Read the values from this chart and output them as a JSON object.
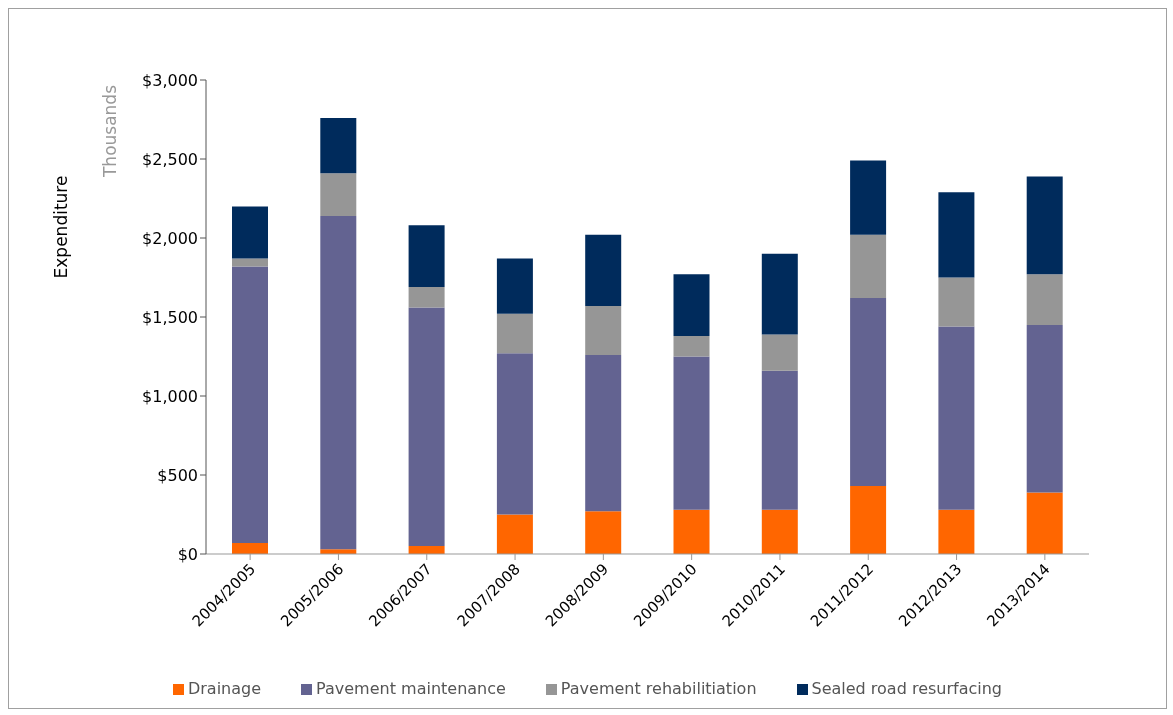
{
  "chart_data": {
    "type": "bar",
    "stacked": true,
    "ylabel": "Expenditure",
    "annotations": [
      "Thousands"
    ],
    "categories": [
      "2004/2005",
      "2005/2006",
      "2006/2007",
      "2007/2008",
      "2008/2009",
      "2009/2010",
      "2010/2011",
      "2011/2012",
      "2012/2013",
      "2013/2014"
    ],
    "series": [
      {
        "name": "Drainage",
        "color": "#ff6600",
        "values": [
          70,
          30,
          50,
          250,
          270,
          280,
          280,
          430,
          280,
          390
        ]
      },
      {
        "name": "Pavement maintenance",
        "color": "#636391",
        "values": [
          1750,
          2110,
          1510,
          1020,
          990,
          970,
          880,
          1190,
          1160,
          1060
        ]
      },
      {
        "name": "Pavement rehabilitiation",
        "color": "#969696",
        "values": [
          50,
          270,
          130,
          250,
          310,
          130,
          230,
          400,
          310,
          320
        ]
      },
      {
        "name": "Sealed road resurfacing",
        "color": "#002b5c",
        "values": [
          330,
          350,
          390,
          350,
          450,
          390,
          510,
          470,
          540,
          620
        ]
      }
    ],
    "ylim": [
      0,
      3000
    ],
    "yticks": [
      {
        "value": 0,
        "label": "$0"
      },
      {
        "value": 500,
        "label": "$500"
      },
      {
        "value": 1000,
        "label": "$1,000"
      },
      {
        "value": 1500,
        "label": "$1,500"
      },
      {
        "value": 2000,
        "label": "$2,000"
      },
      {
        "value": 2500,
        "label": "$2,500"
      },
      {
        "value": 3000,
        "label": "$3,000"
      }
    ],
    "grid": false,
    "legend": "bottom"
  }
}
